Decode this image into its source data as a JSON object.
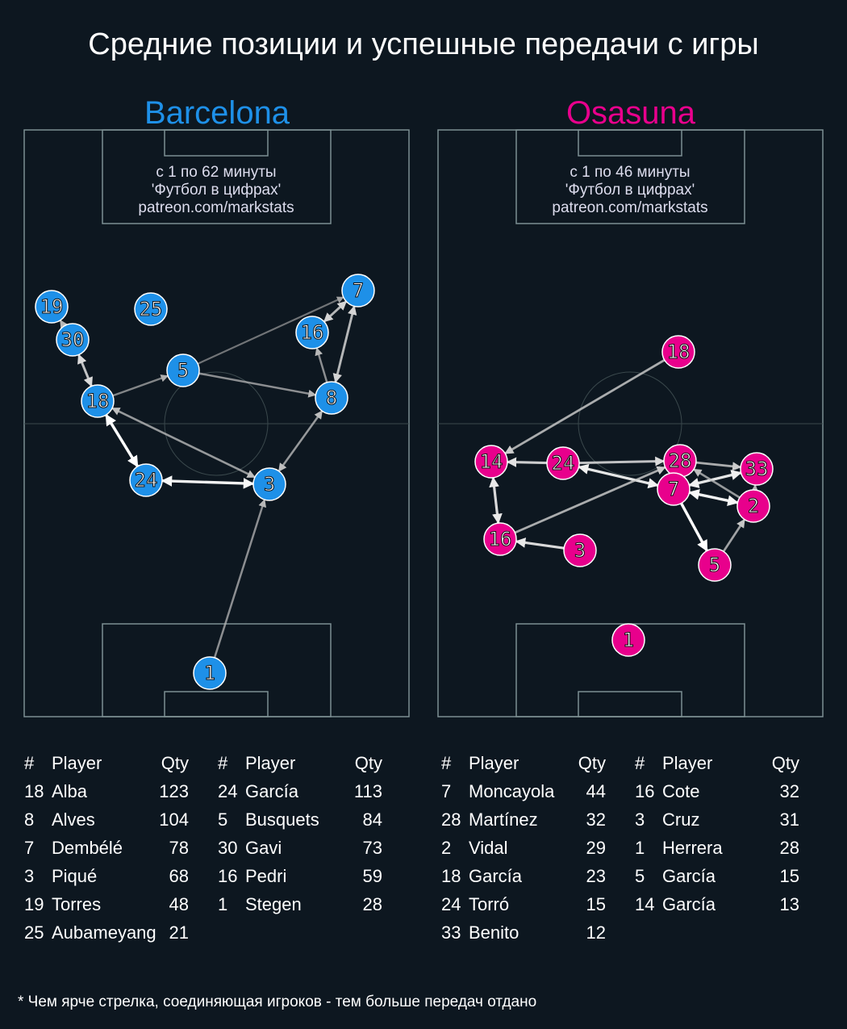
{
  "title": "Средние позиции и успешные передачи с игры",
  "footnote": "* Чем ярче стрелка, соединяющая игроков - тем больше передач отдано",
  "teams": [
    {
      "name": "Barcelona",
      "color": "#1e90e8",
      "info": [
        "с 1 по 62 минуты",
        "'Футбол в цифрах'",
        "patreon.com/markstats"
      ],
      "players": [
        "19",
        "25",
        "30",
        "5",
        "18",
        "7",
        "16",
        "8",
        "24",
        "3",
        "1"
      ],
      "passes": [
        {
          "from": "30",
          "to": "18",
          "both": true,
          "strength": 0.75
        },
        {
          "from": "30",
          "to": "19",
          "strength": 0.5
        },
        {
          "from": "18",
          "to": "5",
          "strength": 0.45
        },
        {
          "from": "5",
          "to": "7",
          "strength": 0.35
        },
        {
          "from": "5",
          "to": "8",
          "strength": 0.5
        },
        {
          "from": "3",
          "to": "18",
          "both": true,
          "strength": 0.55
        },
        {
          "from": "24",
          "to": "18",
          "both": true,
          "strength": 1
        },
        {
          "from": "24",
          "to": "3",
          "both": true,
          "strength": 0.95
        },
        {
          "from": "3",
          "to": "8",
          "both": true,
          "strength": 0.55
        },
        {
          "from": "8",
          "to": "16",
          "strength": 0.5
        },
        {
          "from": "8",
          "to": "7",
          "both": true,
          "strength": 0.7
        },
        {
          "from": "16",
          "to": "7",
          "both": true,
          "strength": 0.7
        },
        {
          "from": "1",
          "to": "3",
          "strength": 0.5
        }
      ],
      "headers": [
        "#",
        "Player",
        "Qty"
      ],
      "table": [
        [
          [
            "18",
            "Alba",
            "123"
          ],
          [
            "8",
            "Alves",
            "104"
          ],
          [
            "7",
            "Dembélé",
            "78"
          ],
          [
            "3",
            "Piqué",
            "68"
          ],
          [
            "19",
            "Torres",
            "48"
          ],
          [
            "25",
            "Aubameyang",
            "21"
          ]
        ],
        [
          [
            "24",
            "García",
            "113"
          ],
          [
            "5",
            "Busquets",
            "84"
          ],
          [
            "30",
            "Gavi",
            "73"
          ],
          [
            "16",
            "Pedri",
            "59"
          ],
          [
            "1",
            "Stegen",
            "28"
          ]
        ]
      ]
    },
    {
      "name": "Osasuna",
      "color": "#e8008c",
      "info": [
        "с 1 по 46 минуты",
        "'Футбол в цифрах'",
        "patreon.com/markstats"
      ],
      "players": [
        "18",
        "14",
        "24",
        "28",
        "33",
        "7",
        "2",
        "16",
        "3",
        "5",
        "1"
      ],
      "passes": [
        {
          "from": "18",
          "to": "14",
          "strength": 0.65
        },
        {
          "from": "24",
          "to": "14",
          "strength": 0.8
        },
        {
          "from": "24",
          "to": "28",
          "strength": 0.75
        },
        {
          "from": "24",
          "to": "7",
          "both": true,
          "strength": 0.9
        },
        {
          "from": "16",
          "to": "28",
          "strength": 0.65
        },
        {
          "from": "14",
          "to": "16",
          "both": true,
          "strength": 0.85
        },
        {
          "from": "3",
          "to": "16",
          "strength": 0.85
        },
        {
          "from": "28",
          "to": "33",
          "strength": 0.65
        },
        {
          "from": "7",
          "to": "33",
          "both": true,
          "strength": 0.9
        },
        {
          "from": "2",
          "to": "28",
          "strength": 0.55
        },
        {
          "from": "7",
          "to": "2",
          "both": true,
          "strength": 0.95
        },
        {
          "from": "7",
          "to": "5",
          "strength": 1
        },
        {
          "from": "5",
          "to": "2",
          "strength": 0.6
        },
        {
          "from": "2",
          "to": "33",
          "strength": 0.5
        }
      ],
      "headers": [
        "#",
        "Player",
        "Qty"
      ],
      "table": [
        [
          [
            "7",
            "Moncayola",
            "44"
          ],
          [
            "28",
            "Martínez",
            "32"
          ],
          [
            "2",
            "Vidal",
            "29"
          ],
          [
            "18",
            "García",
            "23"
          ],
          [
            "24",
            "Torró",
            "15"
          ],
          [
            "33",
            "Benito",
            "12"
          ]
        ],
        [
          [
            "16",
            "Cote",
            "32"
          ],
          [
            "3",
            "Cruz",
            "31"
          ],
          [
            "1",
            "Herrera",
            "28"
          ],
          [
            "5",
            "García",
            "15"
          ],
          [
            "14",
            "García",
            "13"
          ]
        ]
      ]
    }
  ]
}
